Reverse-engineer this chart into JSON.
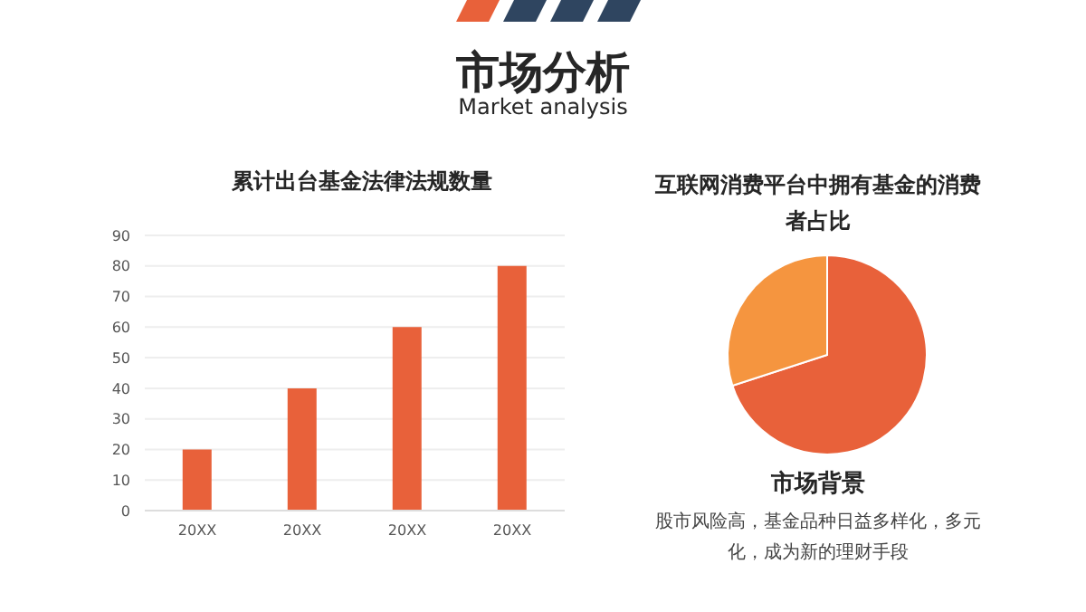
{
  "chart_data": [
    {
      "type": "other",
      "title": "市场分析",
      "subtitle": "Market analysis"
    },
    {
      "type": "bar",
      "title": "累计出台基金法律法规数量",
      "categories": [
        "20XX",
        "20XX",
        "20XX",
        "20XX"
      ],
      "values": [
        20,
        40,
        60,
        80
      ],
      "color": "#e8613a",
      "ylim": [
        0,
        90
      ],
      "yticks": [
        0,
        10,
        20,
        30,
        40,
        50,
        60,
        70,
        80,
        90
      ],
      "grid": "y"
    },
    {
      "type": "pie",
      "title": "互联网消费平台中拥有基金的消费者占比",
      "categories": [
        null,
        null
      ],
      "values": [
        70,
        30
      ],
      "colors": [
        "#e8613a",
        "#f5953f"
      ],
      "annotations": [
        "市场背景",
        "股市风险高，基金品种日益多样化，多元化，成为新的理财手段"
      ]
    }
  ]
}
